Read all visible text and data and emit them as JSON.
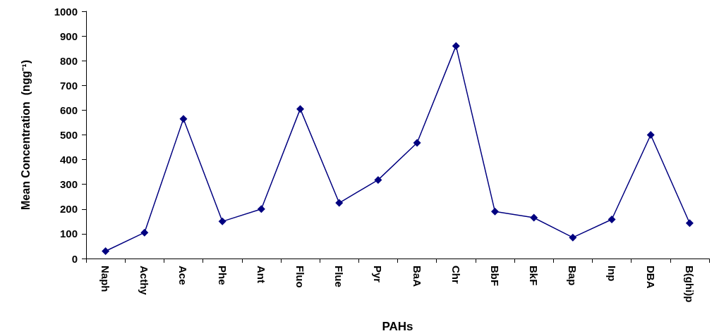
{
  "chart_data": {
    "type": "line",
    "xlabel": "PAHs",
    "ylabel": "Mean Concentration  (ngg⁻¹)",
    "categories": [
      "Naph",
      "Acthy",
      "Ace",
      "Phe",
      "Ant",
      "Fluo",
      "Flue",
      "Pyr",
      "BaA",
      "Chr",
      "BbF",
      "BkF",
      "Bap",
      "Inp",
      "DBA",
      "B(ghi)p"
    ],
    "series": [
      {
        "color": "#000080",
        "values": [
          30,
          105,
          565,
          150,
          200,
          605,
          225,
          318,
          468,
          860,
          190,
          165,
          85,
          158,
          500,
          143
        ]
      }
    ],
    "ylim": [
      0,
      1000
    ],
    "yticks": [
      0,
      100,
      200,
      300,
      400,
      500,
      600,
      700,
      800,
      900,
      1000
    ],
    "grid": false,
    "marker": "diamond",
    "line_style": "solid"
  }
}
